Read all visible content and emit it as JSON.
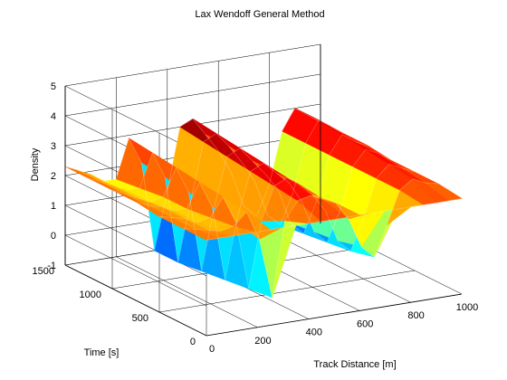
{
  "chart_data": {
    "type": "surface",
    "title": "Lax Wendoff General Method",
    "xlabel": "Track Distance [m]",
    "ylabel": "Time [s]",
    "zlabel": "Density",
    "xlim": [
      0,
      1000
    ],
    "ylim": [
      0,
      1500
    ],
    "zlim": [
      -1,
      5
    ],
    "x_ticks": [
      0,
      200,
      400,
      600,
      800,
      1000
    ],
    "y_ticks": [
      0,
      500,
      1000,
      1500
    ],
    "z_ticks": [
      -1,
      0,
      1,
      2,
      3,
      4,
      5
    ],
    "grid": true,
    "colormap": "jet",
    "x": [
      0,
      50,
      100,
      150,
      200,
      250,
      300,
      350,
      400,
      450,
      500,
      550,
      600,
      650,
      700,
      750,
      800,
      850,
      900,
      950,
      1000
    ],
    "series": [
      {
        "time": 0,
        "density": [
          2.2,
          2.2,
          2.2,
          2.2,
          2.2,
          2.2,
          2.2,
          2.2,
          2.2,
          2.2,
          2.2,
          2.2,
          2.2,
          2.2,
          2.2,
          2.2,
          2.2,
          2.2,
          2.2,
          2.2,
          2.2
        ]
      },
      {
        "time": 250,
        "density": [
          2.2,
          2.1,
          2.0,
          1.9,
          2.0,
          2.4,
          1.4,
          -0.6,
          1.9,
          2.5,
          2.6,
          2.4,
          2.2,
          1.6,
          0.6,
          0.2,
          1.2,
          2.3,
          2.6,
          2.4,
          2.3
        ]
      },
      {
        "time": 500,
        "density": [
          2.2,
          2.1,
          2.0,
          1.8,
          1.9,
          2.5,
          1.6,
          -0.7,
          1.5,
          2.6,
          2.8,
          2.5,
          2.1,
          1.5,
          0.4,
          0.0,
          1.0,
          2.3,
          2.7,
          2.5,
          2.3
        ]
      },
      {
        "time": 750,
        "density": [
          2.3,
          2.1,
          2.0,
          1.8,
          1.8,
          2.6,
          1.7,
          -0.8,
          1.3,
          2.7,
          2.9,
          2.5,
          2.1,
          1.4,
          0.3,
          -0.1,
          0.9,
          2.3,
          2.8,
          2.6,
          2.3
        ]
      },
      {
        "time": 1000,
        "density": [
          2.3,
          2.1,
          1.9,
          1.7,
          1.8,
          2.7,
          1.8,
          -0.9,
          1.2,
          2.8,
          3.0,
          2.5,
          2.0,
          1.4,
          0.2,
          -0.2,
          0.8,
          2.3,
          2.9,
          2.6,
          2.4
        ]
      },
      {
        "time": 1250,
        "density": [
          2.3,
          2.1,
          1.9,
          1.7,
          1.7,
          2.8,
          1.9,
          -1.0,
          1.0,
          2.9,
          3.1,
          2.6,
          2.0,
          1.3,
          0.1,
          -0.3,
          0.7,
          2.3,
          3.0,
          2.7,
          2.4
        ]
      },
      {
        "time": 1500,
        "density": [
          2.3,
          2.1,
          1.9,
          1.6,
          1.6,
          2.9,
          2.0,
          -1.0,
          0.9,
          3.0,
          3.2,
          2.6,
          2.0,
          1.2,
          0.0,
          -0.4,
          0.6,
          2.3,
          3.0,
          2.7,
          2.4
        ]
      }
    ]
  }
}
